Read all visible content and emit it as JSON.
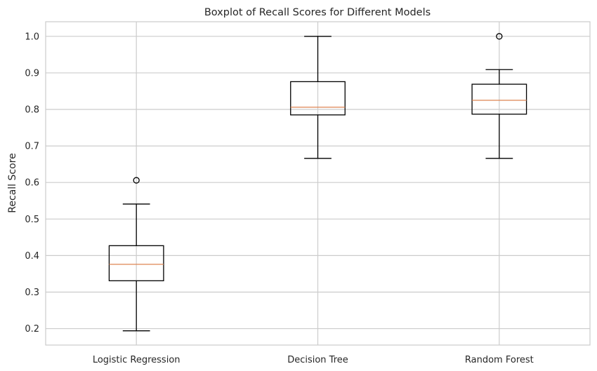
{
  "chart_data": {
    "type": "boxplot",
    "title": "Boxplot of Recall Scores for Different Models",
    "xlabel": "",
    "ylabel": "Recall Score",
    "ylim": [
      0.155,
      1.04
    ],
    "yticks": [
      "0.2",
      "0.3",
      "0.4",
      "0.5",
      "0.6",
      "0.7",
      "0.8",
      "0.9",
      "1.0"
    ],
    "ytick_values": [
      0.2,
      0.3,
      0.4,
      0.5,
      0.6,
      0.7,
      0.8,
      0.9,
      1.0
    ],
    "grid": true,
    "categories": [
      "Logistic Regression",
      "Decision Tree",
      "Random Forest"
    ],
    "boxes": [
      {
        "whisker_low": 0.194,
        "q1": 0.331,
        "median": 0.376,
        "q3": 0.427,
        "whisker_high": 0.541,
        "outliers": [
          0.606
        ]
      },
      {
        "whisker_low": 0.666,
        "q1": 0.785,
        "median": 0.806,
        "q3": 0.876,
        "whisker_high": 1.0,
        "outliers": []
      },
      {
        "whisker_low": 0.666,
        "q1": 0.787,
        "median": 0.825,
        "q3": 0.869,
        "whisker_high": 0.909,
        "outliers": [
          1.0
        ]
      }
    ],
    "colors": {
      "box": "#000000",
      "median": "#dd8452",
      "grid": "#cccccc",
      "axes": "#cccccc",
      "background": "#ffffff"
    }
  }
}
